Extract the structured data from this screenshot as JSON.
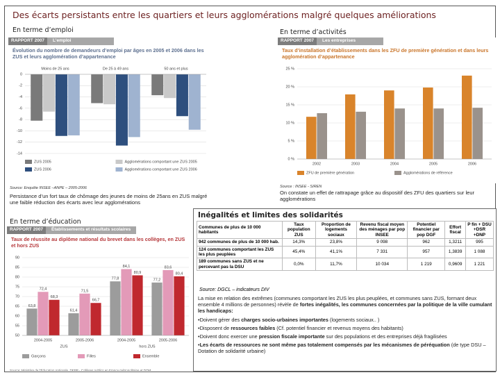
{
  "title": "Des écarts persistants entre les quartiers et leurs agglomérations malgré quelques améliorations",
  "sections": {
    "emploi": "En terme d’emploi",
    "activites": "En terme d’activités",
    "education": "En terme d’éducation",
    "solidarites": "Inégalités et limites des solidarités"
  },
  "chart_data": [
    {
      "type": "bar",
      "report": "RAPPORT 2007",
      "section": "L’emploi",
      "title": "Évolution du nombre de demandeurs d’emploi par âges en 2005 et 2006 dans les ZUS et leurs agglomération d’appartenance",
      "categories": [
        "Moins de 25 ans",
        "De 25 à 49 ans",
        "50 ans et plus"
      ],
      "series": [
        {
          "name": "ZUS 2005",
          "color": "#7a7a7a",
          "values": [
            -8.2,
            -5.1,
            -3.7
          ]
        },
        {
          "name": "Agglomérations comportant une ZUS 2005",
          "color": "#c9c9c9",
          "values": [
            -6.6,
            -5.3,
            -4.2
          ]
        },
        {
          "name": "ZUS 2006",
          "color": "#2e4f7e",
          "values": [
            -10.9,
            -12.6,
            -7.4
          ]
        },
        {
          "name": "Agglomérations comportant une ZUS 2006",
          "color": "#9fb3d0",
          "values": [
            -10.8,
            -11.1,
            -9.8
          ]
        }
      ],
      "ylim": [
        -14,
        0
      ],
      "yticks": [
        0,
        -2,
        -4,
        -6,
        -8,
        -10,
        -12,
        -14
      ],
      "grid": true,
      "source": "Source: Enquête INSEE –ANPE – 2005-2006",
      "note": "Persistance d’un fort taux de chômage des jeunes de moins de 25ans en ZUS malgré une faible réduction des écarts avec leur agglomérations"
    },
    {
      "type": "bar",
      "report": "RAPPORT 2007",
      "section": "Les entreprises",
      "title": "Taux d’installation d’établissements dans les ZFU de première génération et dans leurs agglomération d’appartenance",
      "categories": [
        "2002",
        "2003",
        "2004",
        "2005",
        "2006"
      ],
      "series": [
        {
          "name": "ZFU de première génération",
          "color": "#d9842b",
          "values": [
            11.7,
            17.9,
            19.0,
            19.8,
            23.1
          ]
        },
        {
          "name": "Agglomérations de référence",
          "color": "#9a928c",
          "values": [
            12.7,
            13.1,
            14.0,
            14.0,
            14.2
          ]
        }
      ],
      "ylim": [
        0,
        25
      ],
      "yticks": [
        {
          "value": 0,
          "label": "0 %"
        },
        {
          "value": 5,
          "label": "5 %"
        },
        {
          "value": 10,
          "label": "10 %"
        },
        {
          "value": 15,
          "label": "15 %"
        },
        {
          "value": 20,
          "label": "20 %"
        },
        {
          "value": 25,
          "label": "25 %"
        }
      ],
      "grid": true,
      "source": "Source : INSEE - SIREN",
      "note": "On constate un effet de rattrapage grâce au dispositif des ZFU des quartiers sur leur agglomérations"
    },
    {
      "type": "bar",
      "report": "RAPPORT 2007",
      "section": "Établissements et résultats scolaires",
      "title": "Taux de réussite au diplôme national du brevet dans les collèges, en ZUS et hors ZUS",
      "categories": [
        "2004-2005",
        "2005-2006",
        "2004-2005",
        "2005-2006"
      ],
      "category_groups": [
        "ZUS",
        "hors ZUS"
      ],
      "series": [
        {
          "name": "Garçons",
          "color": "#9c9c9c",
          "values": [
            63.8,
            61.4,
            77.8,
            77.2
          ],
          "value_labels": [
            "63,8",
            "61,4",
            "77,8",
            "77,2"
          ]
        },
        {
          "name": "Filles",
          "color": "#e39ab8",
          "values": [
            72.4,
            71.5,
            84.1,
            83.6
          ],
          "value_labels": [
            "72,4",
            "71,5",
            "84,1",
            "83,6"
          ]
        },
        {
          "name": "Ensemble",
          "color": "#c0282e",
          "values": [
            68.3,
            66.7,
            80.9,
            80.4
          ],
          "value_labels": [
            "68,3",
            "66,7",
            "80,9",
            "80,4"
          ]
        }
      ],
      "ylim": [
        50,
        90
      ],
      "yticks": [
        50,
        55,
        60,
        65,
        70,
        75,
        80,
        85,
        90
      ],
      "grid": true,
      "source": "Source: Ministère de l’Éducation nationale, DEPP - Collèges publics en France métropolitaine et DOM"
    }
  ],
  "table": {
    "header": [
      "Communes de plus de 10 000 habitants",
      "Taux population ZUS",
      "Proportion de logements sociaux",
      "Revenu fiscal moyen des ménages par pop INSEE",
      "Potentiel financier par pop DGF",
      "Effort fiscal",
      "P fin + DSU +DSR +DNP"
    ],
    "rows": [
      [
        "942 communes de plus de 10 000 hab.",
        "14,3%",
        "23,8%",
        "9 098",
        "962",
        "1,3211",
        "995"
      ],
      [
        "124 communes comportant les ZUS les plus peuplées",
        "45,4%",
        "41,1%",
        "7 331",
        "957",
        "1,3839",
        "1 088"
      ],
      [
        "189 communes sans ZUS et ne percevant pas la DSU",
        "0,0%",
        "11,7%",
        "10 034",
        "1 219",
        "0,9609",
        "1 221"
      ]
    ],
    "source": "Source: DGCL – indicateurs DIV"
  },
  "text": {
    "intro": [
      "La mise en relation des extrêmes (communes comportant les ZUS les plus peuplées, et communes sans ZUS, formant deux ensemble 4 millions de personnes) révèle de ",
      {
        "strong": "fortes inégalités, les communes concernées par la politique de la ville cumulant les handicaps:"
      }
    ],
    "bullets": [
      [
        "Doivent gérer des ",
        {
          "strong": "charges socio-urbaines importantes"
        },
        " (logements sociaux.. )"
      ],
      [
        "Disposent de ",
        {
          "strong": "ressources faibles"
        },
        " (Cf. potentiel financier et revenus moyens des habitants)"
      ],
      [
        "Doivent donc exercer une ",
        {
          "strong": "pression fiscale importante"
        },
        " sur des populations et des entreprises déjà fragilisées"
      ],
      [
        {
          "strong": "Les écarts de ressources ne sont même pas totalement compensés par les mécanismes de péréquation"
        },
        " (de type DSU – Dotation de solidarité urbaine)"
      ]
    ]
  }
}
